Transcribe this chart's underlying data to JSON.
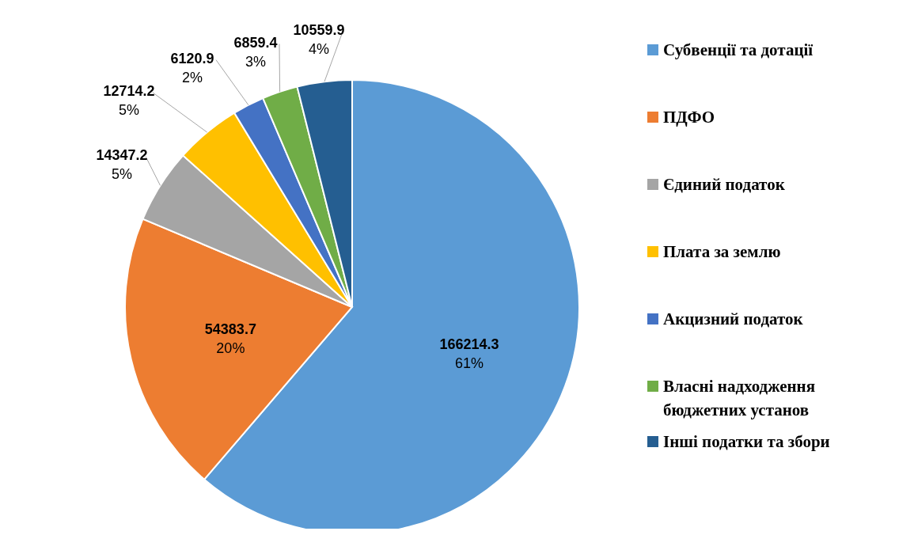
{
  "chart_data": {
    "type": "pie",
    "categories": [
      "Субвенції та дотації",
      "ПДФО",
      "Єдиний податок",
      "Плата за землю",
      "Акцизний податок",
      "Власні надходження бюджетних установ",
      "Інші податки та збори"
    ],
    "values": [
      166214.3,
      54383.7,
      14347.2,
      12714.2,
      6120.9,
      6859.4,
      10559.9
    ],
    "colors": [
      "#5b9bd5",
      "#ed7d31",
      "#a5a5a5",
      "#ffc000",
      "#4472c4",
      "#70ad47",
      "#255e91"
    ],
    "value_labels": [
      "166214.3\n61%",
      "54383.7\n20%",
      "14347.2\n5%",
      "12714.2\n5%",
      "6120.9\n2%",
      "6859.4\n3%",
      "10559.9\n4%"
    ],
    "legend": "right"
  }
}
